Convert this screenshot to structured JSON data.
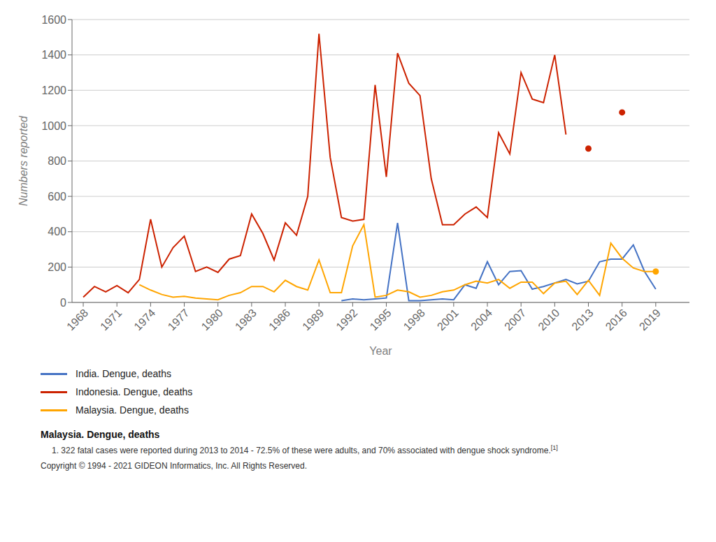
{
  "chart_data": {
    "type": "line",
    "xlabel": "Year",
    "ylabel": "Numbers reported",
    "xlim": [
      1967,
      2022
    ],
    "xticks": [
      1968,
      1971,
      1974,
      1977,
      1980,
      1983,
      1986,
      1989,
      1992,
      1995,
      1998,
      2001,
      2004,
      2007,
      2010,
      2013,
      2016,
      2019
    ],
    "ylim": [
      0,
      1600
    ],
    "yticks": [
      0,
      200,
      400,
      600,
      800,
      1000,
      1200,
      1400,
      1600
    ],
    "grid": true,
    "series": [
      {
        "name": "India. Dengue, deaths",
        "color": "#4472c4",
        "x": [
          1991,
          1992,
          1993,
          1994,
          1995,
          1996,
          1997,
          1998,
          1999,
          2000,
          2001,
          2002,
          2003,
          2004,
          2005,
          2006,
          2007,
          2008,
          2009,
          2010,
          2011,
          2012,
          2013,
          2014,
          2015,
          2016,
          2017,
          2018,
          2019,
          2020
        ],
        "values": [
          10,
          20,
          15,
          20,
          25,
          450,
          10,
          10,
          15,
          20,
          15,
          100,
          80,
          230,
          100,
          175,
          180,
          75,
          90,
          110,
          130,
          105,
          120,
          230,
          245,
          245,
          325,
          175,
          75,
          null
        ]
      },
      {
        "name": "Indonesia. Dengue, deaths",
        "color": "#cc2200",
        "marker": "isolated",
        "x": [
          1968,
          1969,
          1970,
          1971,
          1972,
          1973,
          1974,
          1975,
          1976,
          1977,
          1978,
          1979,
          1980,
          1981,
          1982,
          1983,
          1984,
          1985,
          1986,
          1987,
          1988,
          1989,
          1990,
          1991,
          1992,
          1993,
          1994,
          1995,
          1996,
          1997,
          1998,
          1999,
          2000,
          2001,
          2002,
          2003,
          2004,
          2005,
          2006,
          2007,
          2008,
          2009,
          2010,
          2011,
          2012,
          2013,
          2014,
          2015,
          2016
        ],
        "values": [
          30,
          90,
          60,
          95,
          55,
          130,
          470,
          200,
          310,
          375,
          175,
          200,
          170,
          245,
          265,
          500,
          390,
          240,
          450,
          380,
          600,
          1520,
          820,
          480,
          460,
          470,
          1230,
          710,
          1410,
          1240,
          1170,
          700,
          440,
          440,
          500,
          540,
          480,
          960,
          840,
          1300,
          1150,
          1130,
          1400,
          950,
          null,
          870,
          null,
          null,
          1075
        ]
      },
      {
        "name": "Malaysia. Dengue, deaths",
        "color": "#ffa500",
        "marker": "last",
        "x": [
          1973,
          1974,
          1975,
          1976,
          1977,
          1978,
          1979,
          1980,
          1981,
          1982,
          1983,
          1984,
          1985,
          1986,
          1987,
          1988,
          1989,
          1990,
          1991,
          1992,
          1993,
          1994,
          1995,
          1996,
          1997,
          1998,
          1999,
          2000,
          2001,
          2002,
          2003,
          2004,
          2005,
          2006,
          2007,
          2008,
          2009,
          2010,
          2011,
          2012,
          2013,
          2014,
          2015,
          2016,
          2017,
          2018,
          2019
        ],
        "values": [
          100,
          70,
          45,
          30,
          35,
          25,
          20,
          15,
          40,
          55,
          90,
          90,
          60,
          125,
          90,
          70,
          240,
          55,
          55,
          320,
          440,
          30,
          40,
          70,
          60,
          30,
          40,
          60,
          70,
          100,
          120,
          110,
          130,
          80,
          115,
          115,
          50,
          110,
          120,
          45,
          125,
          40,
          335,
          250,
          195,
          175,
          175
        ]
      }
    ],
    "annotations": [
      "Malaysia. Dengue, deaths",
      "1. 322 fatal cases were reported during 2013 to 2014 - 72.5% of these were adults, and 70% associated with dengue shock syndrome.",
      "[1]",
      "Copyright © 1994 - 2021 GIDEON Informatics, Inc. All Rights Reserved."
    ]
  }
}
